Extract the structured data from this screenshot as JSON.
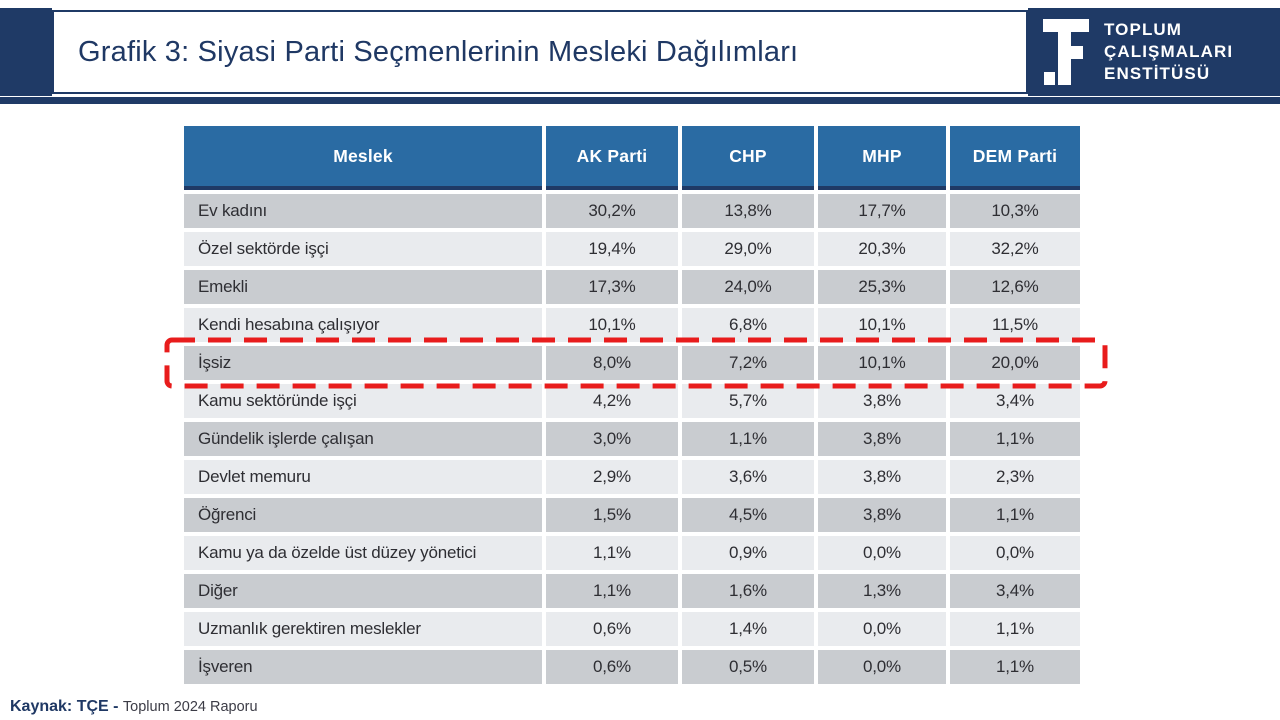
{
  "header": {
    "title": "Grafik 3: Siyasi Parti Seçmenlerinin Mesleki Dağılımları",
    "logo": {
      "icon": "tce-monogram-icon",
      "lines": [
        "TOPLUM",
        "ÇALIŞMALARI",
        "ENSTİTÜSÜ"
      ]
    }
  },
  "chart_data": {
    "type": "table",
    "title": "Grafik 3: Siyasi Parti Seçmenlerinin Mesleki Dağılımları",
    "columns": [
      "Meslek",
      "AK Parti",
      "CHP",
      "MHP",
      "DEM Parti"
    ],
    "value_format": "percent-comma-decimal",
    "rows": [
      {
        "label": "Ev kadını",
        "values": [
          30.2,
          13.8,
          17.7,
          10.3
        ]
      },
      {
        "label": "Özel sektörde işçi",
        "values": [
          19.4,
          29.0,
          20.3,
          32.2
        ]
      },
      {
        "label": "Emekli",
        "values": [
          17.3,
          24.0,
          25.3,
          12.6
        ]
      },
      {
        "label": "Kendi hesabına çalışıyor",
        "values": [
          10.1,
          6.8,
          10.1,
          11.5
        ]
      },
      {
        "label": "İşsiz",
        "values": [
          8.0,
          7.2,
          10.1,
          20.0
        ]
      },
      {
        "label": "Kamu sektöründe işçi",
        "values": [
          4.2,
          5.7,
          3.8,
          3.4
        ]
      },
      {
        "label": "Gündelik işlerde çalışan",
        "values": [
          3.0,
          1.1,
          3.8,
          1.1
        ]
      },
      {
        "label": "Devlet memuru",
        "values": [
          2.9,
          3.6,
          3.8,
          2.3
        ]
      },
      {
        "label": "Öğrenci",
        "values": [
          1.5,
          4.5,
          3.8,
          1.1
        ]
      },
      {
        "label": "Kamu ya da özelde üst düzey yönetici",
        "values": [
          1.1,
          0.9,
          0.0,
          0.0
        ]
      },
      {
        "label": "Diğer",
        "values": [
          1.1,
          1.6,
          1.3,
          3.4
        ]
      },
      {
        "label": "Uzmanlık gerektiren meslekler",
        "values": [
          0.6,
          1.4,
          0.0,
          1.1
        ]
      },
      {
        "label": "İşveren",
        "values": [
          0.6,
          0.5,
          0.0,
          1.1
        ]
      }
    ],
    "highlight": {
      "row": "İşsiz",
      "style": "red-dashed-outline"
    }
  },
  "footer": {
    "source_prefix": "Kaynak: TÇE -",
    "source_text": "Toplum 2024 Raporu"
  },
  "colors": {
    "navy": "#1f3a66",
    "title_navy": "#1f3864",
    "header_blue": "#2a6ba3",
    "row_dark": "#c9ccd0",
    "row_light": "#e9ebee",
    "highlight_red": "#e81c1c",
    "text_dark": "#2e2e33"
  }
}
